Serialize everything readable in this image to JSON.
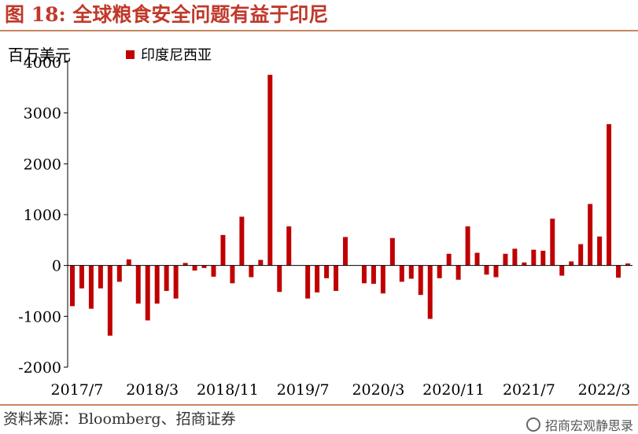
{
  "figure": {
    "title": "图 18: 全球粮食安全问题有益于印尼",
    "unit_label": "百万美元",
    "source": "资料来源：Bloomberg、招商证券",
    "watermark": "招商宏观静思录"
  },
  "colors": {
    "bar": "#c00000",
    "title": "#c0392b",
    "rule": "#c8865f",
    "axis": "#000000"
  },
  "chart_data": {
    "type": "bar",
    "ylim": [
      -2000,
      4000
    ],
    "yticks": [
      -2000,
      -1000,
      0,
      1000,
      2000,
      3000,
      4000
    ],
    "ytick_labels": [
      "-2000",
      "-1000",
      "0",
      "1000",
      "2000",
      "3000",
      "4000"
    ],
    "xtick_labels": [
      "2017/7",
      "2018/3",
      "2018/11",
      "2019/7",
      "2020/3",
      "2020/11",
      "2021/7",
      "2022/3"
    ],
    "xtick_every": 8,
    "grid": false,
    "legend_position": "top-left",
    "series": [
      {
        "name": "印度尼西亚",
        "color": "#c00000",
        "values": [
          -800,
          -450,
          -850,
          -450,
          -1380,
          -320,
          120,
          -750,
          -1080,
          -750,
          -500,
          -650,
          50,
          -100,
          -50,
          -220,
          600,
          -350,
          960,
          -230,
          110,
          3750,
          -520,
          770,
          0,
          -650,
          -530,
          -250,
          -500,
          560,
          0,
          -350,
          -360,
          -550,
          540,
          -320,
          -260,
          -580,
          -1050,
          -250,
          230,
          -280,
          770,
          250,
          -180,
          -230,
          230,
          330,
          60,
          310,
          290,
          920,
          -200,
          80,
          420,
          1210,
          570,
          2780,
          -240,
          40
        ]
      }
    ]
  }
}
